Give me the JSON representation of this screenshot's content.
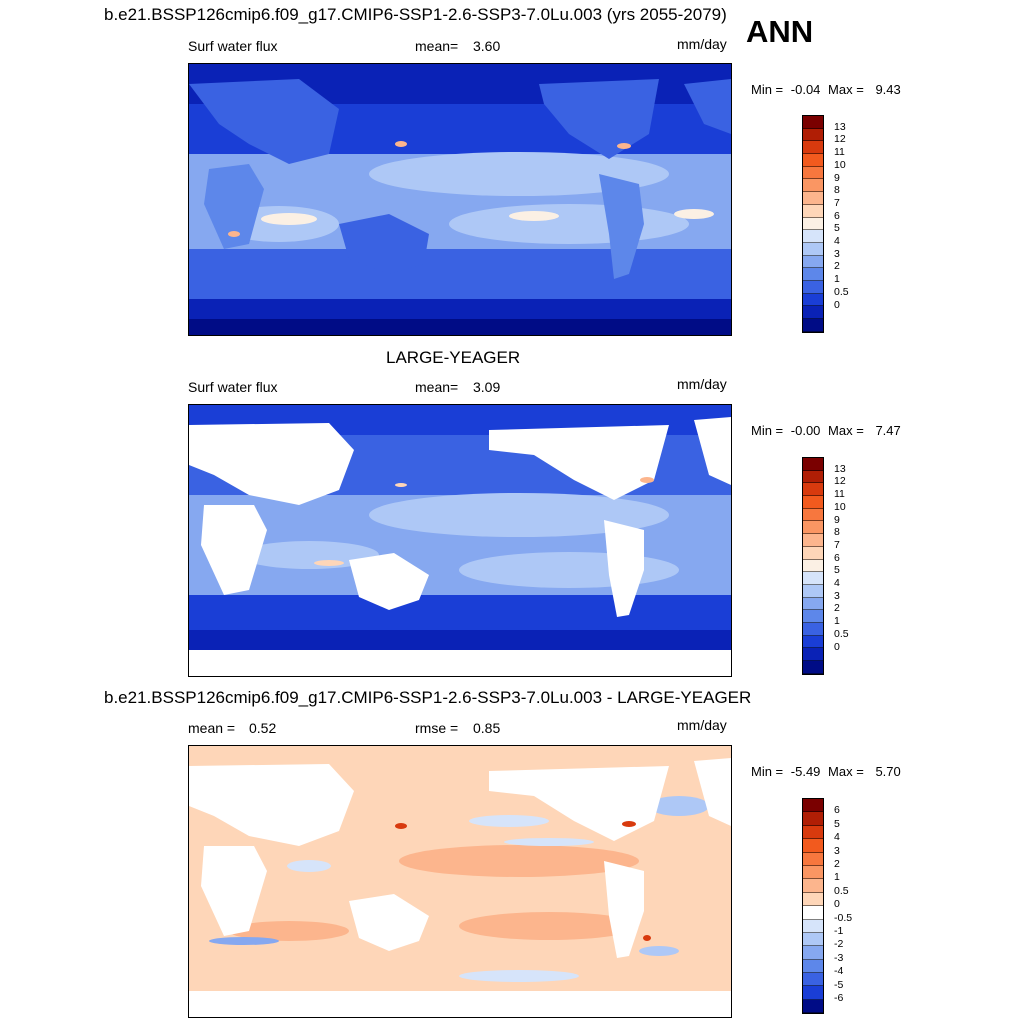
{
  "figure": {
    "top_title": "b.e21.BSSP126cmip6.f09_g17.CMIP6-SSP1-2.6-SSP3-7.0Lu.003 (yrs 2055-2079)",
    "season": "ANN"
  },
  "panel1": {
    "variable": "Surf water flux",
    "mean_label": "mean=",
    "mean_value": "3.60",
    "units": "mm/day",
    "min_label": "Min =",
    "min_value": "-0.04",
    "max_label": "Max =",
    "max_value": "9.43"
  },
  "panel2": {
    "title": "LARGE-YEAGER",
    "variable": "Surf water flux",
    "mean_label": "mean=",
    "mean_value": "3.09",
    "units": "mm/day",
    "min_label": "Min =",
    "min_value": "-0.00",
    "max_label": "Max =",
    "max_value": "7.47"
  },
  "panel3": {
    "title": "b.e21.BSSP126cmip6.f09_g17.CMIP6-SSP1-2.6-SSP3-7.0Lu.003 - LARGE-YEAGER",
    "mean_label": "mean =",
    "mean_value": "0.52",
    "rmse_label": "rmse =",
    "rmse_value": "0.85",
    "units": "mm/day",
    "min_label": "Min =",
    "min_value": "-5.49",
    "max_label": "Max =",
    "max_value": "5.70"
  },
  "colorbar_abs": {
    "ticks": [
      "13",
      "12",
      "11",
      "10",
      "9",
      "8",
      "7",
      "6",
      "5",
      "4",
      "3",
      "2",
      "1",
      "0.5",
      "0"
    ],
    "colors": [
      "#7a0000",
      "#b01e05",
      "#d83a0e",
      "#f25a1e",
      "#f7773e",
      "#fa9663",
      "#fcb58d",
      "#fed6b8",
      "#fbf0e4",
      "#d6e4fa",
      "#aec8f6",
      "#86a8f0",
      "#5d87ea",
      "#3a62e2",
      "#1a3ed6",
      "#0a22b6",
      "#000c86"
    ]
  },
  "colorbar_diff": {
    "ticks": [
      "6",
      "5",
      "4",
      "3",
      "2",
      "1",
      "0.5",
      "0",
      "-0.5",
      "-1",
      "-2",
      "-3",
      "-4",
      "-5",
      "-6"
    ],
    "colors": [
      "#7a0000",
      "#b01e05",
      "#d83a0e",
      "#f25a1e",
      "#f7773e",
      "#fa9663",
      "#fcb58d",
      "#fed6b8",
      "#ffffff",
      "#d6e4fa",
      "#aec8f6",
      "#86a8f0",
      "#5d87ea",
      "#3a62e2",
      "#1a3ed6",
      "#000c86"
    ]
  },
  "map_colors": {
    "ocean_low": "#aec8f6",
    "ocean_mid": "#5d87ea",
    "ocean_high": "#1a3ed6",
    "ocean_deep": "#0a22b6",
    "diff_pos": "#fcc8a8",
    "diff_strong": "#f26a3a",
    "diff_neg": "#cfe0fa"
  }
}
